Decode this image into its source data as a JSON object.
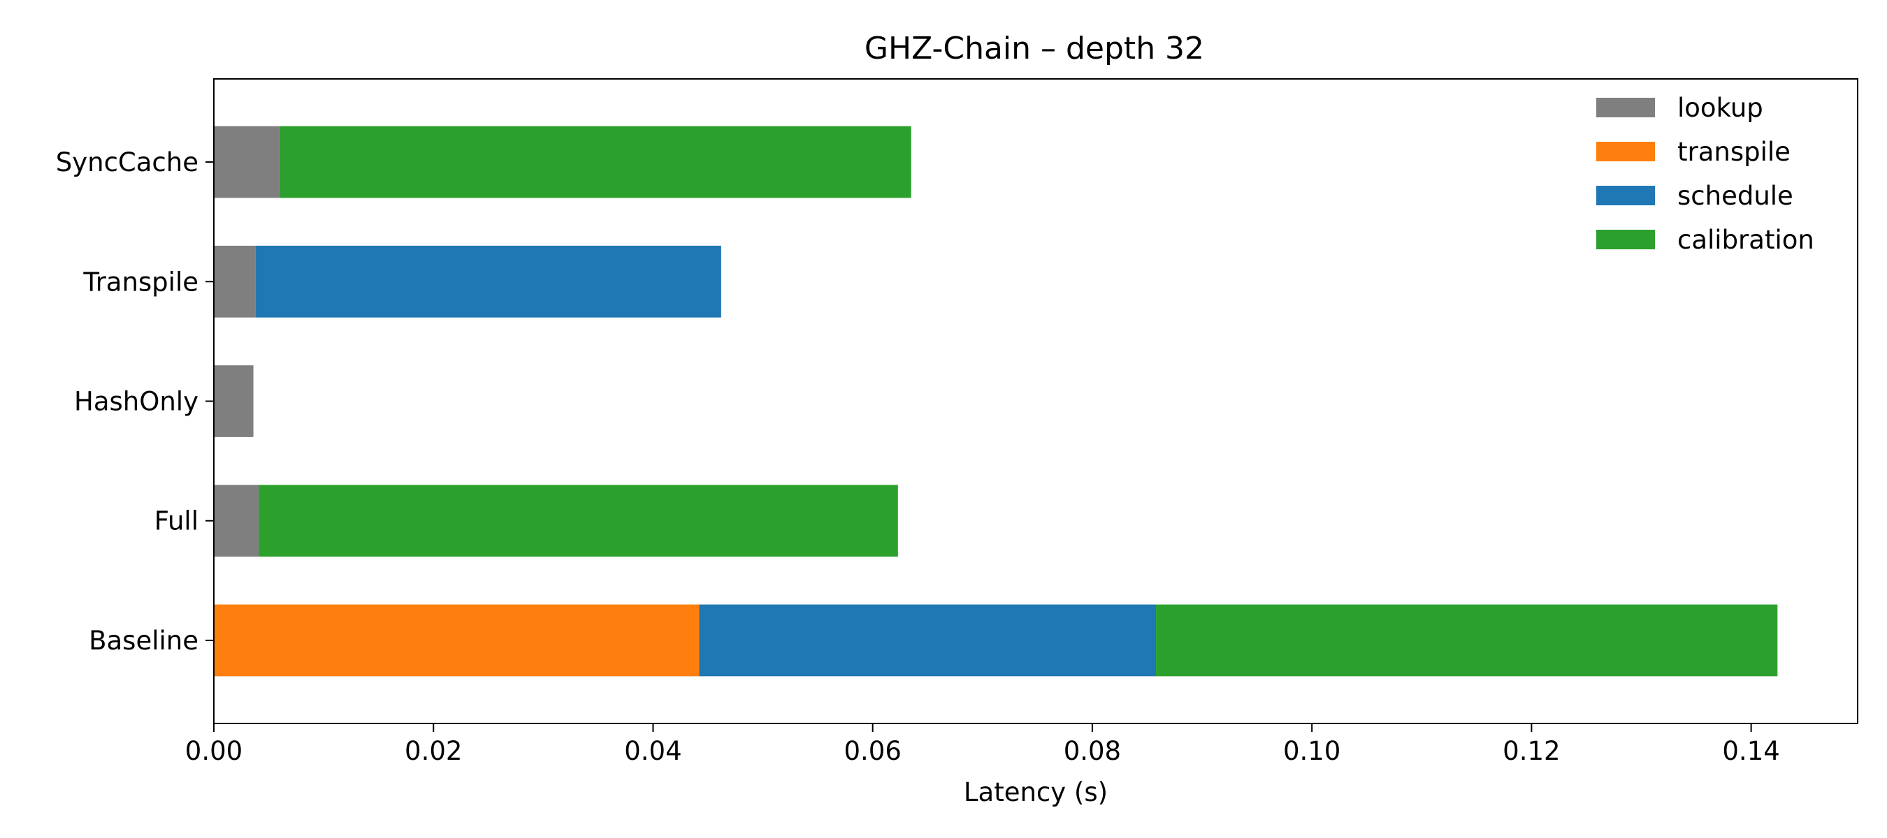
{
  "chart_data": {
    "type": "bar",
    "orientation": "horizontal",
    "stacked": true,
    "title": "GHZ-Chain – depth 32",
    "xlabel": "Latency (s)",
    "ylabel": "",
    "xlim": [
      0,
      0.1497
    ],
    "xticks": [
      "0.00",
      "0.02",
      "0.04",
      "0.06",
      "0.08",
      "0.10",
      "0.12",
      "0.14"
    ],
    "xtick_values": [
      0,
      0.02,
      0.04,
      0.06,
      0.08,
      0.1,
      0.12,
      0.14
    ],
    "grid": false,
    "legend_position": "top-right",
    "categories": [
      "Baseline",
      "Full",
      "HashOnly",
      "Transpile",
      "SyncCache"
    ],
    "series": [
      {
        "name": "lookup",
        "color": "#7f7f7f",
        "values": [
          0.0,
          0.0041,
          0.0036,
          0.0038,
          0.006
        ]
      },
      {
        "name": "transpile",
        "color": "#ff7f0e",
        "values": [
          0.0442,
          0.0,
          0.0,
          0.0,
          0.0
        ]
      },
      {
        "name": "schedule",
        "color": "#1f77b4",
        "values": [
          0.0416,
          0.0,
          0.0,
          0.0424,
          0.0
        ]
      },
      {
        "name": "calibration",
        "color": "#2ca02c",
        "values": [
          0.0566,
          0.0582,
          0.0,
          0.0,
          0.0575
        ]
      }
    ]
  }
}
